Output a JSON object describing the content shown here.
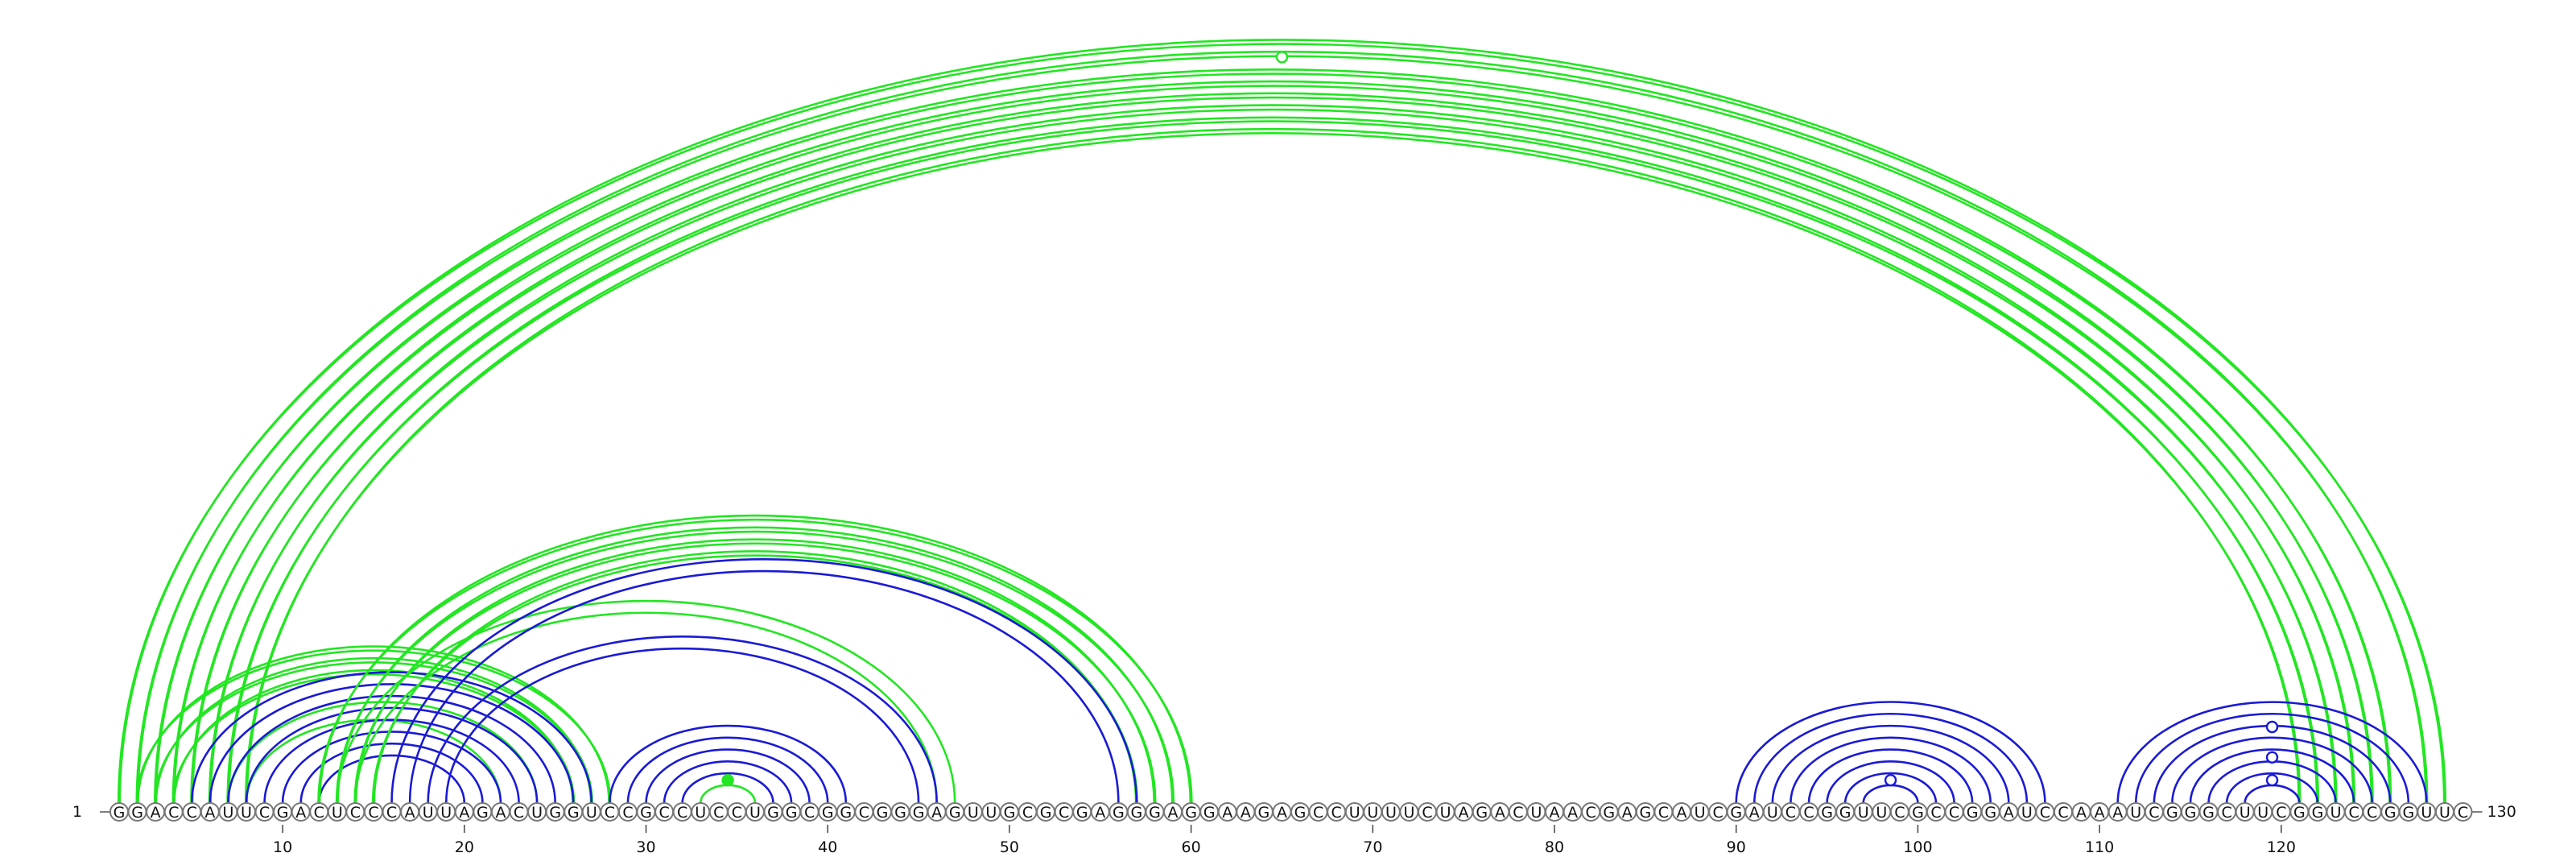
{
  "sequence": "GGACCAUUCGACUCCCAUUAGACUGGUCCGCCUCCUGGCGGCGGGAGUUGCGCGAGGGAGGAAGAGCCUUUUCUAGACUAACGAGCAUCGAUCCGGUUCGCCGGAUCCAAAUCGGGCUUCGGUCCGGUUC",
  "start_label": "1",
  "end_label": "130",
  "ticks": [
    "10",
    "20",
    "30",
    "40",
    "50",
    "60",
    "70",
    "80",
    "90",
    "100",
    "110",
    "120"
  ],
  "colors": {
    "blue": "#1a1ad6",
    "green": "#22e622"
  },
  "arc_groups": [
    {
      "color": "green",
      "double": true,
      "pairs": [
        [
          1,
          129
        ],
        [
          2,
          128
        ],
        [
          3,
          126
        ],
        [
          4,
          125
        ],
        [
          5,
          124
        ],
        [
          6,
          123
        ],
        [
          7,
          122
        ],
        [
          8,
          121
        ]
      ]
    },
    {
      "color": "green",
      "double": true,
      "pairs": [
        [
          2,
          28
        ],
        [
          3,
          27
        ],
        [
          4,
          26
        ]
      ]
    },
    {
      "color": "green",
      "double": false,
      "pairs": [
        [
          7,
          24
        ],
        [
          8,
          22
        ]
      ]
    },
    {
      "color": "blue",
      "double": false,
      "pairs": [
        [
          5,
          27
        ],
        [
          6,
          26
        ],
        [
          7,
          25
        ],
        [
          8,
          24
        ],
        [
          9,
          23
        ],
        [
          10,
          22
        ],
        [
          11,
          21
        ],
        [
          12,
          20
        ]
      ]
    },
    {
      "color": "green",
      "double": true,
      "pairs": [
        [
          12,
          60
        ],
        [
          13,
          59
        ],
        [
          14,
          58
        ],
        [
          15,
          57
        ]
      ]
    },
    {
      "color": "green",
      "double": false,
      "pairs": [
        [
          13,
          47
        ],
        [
          14,
          46
        ]
      ]
    },
    {
      "color": "blue",
      "double": false,
      "pairs": [
        [
          16,
          57
        ],
        [
          17,
          56
        ],
        [
          18,
          46
        ],
        [
          19,
          45
        ]
      ]
    },
    {
      "color": "blue",
      "double": false,
      "pairs": [
        [
          28,
          41
        ],
        [
          29,
          40
        ],
        [
          30,
          39
        ],
        [
          31,
          38
        ],
        [
          32,
          37
        ]
      ]
    },
    {
      "color": "green",
      "double": false,
      "pairs": [
        [
          33,
          36
        ]
      ]
    },
    {
      "color": "blue",
      "double": false,
      "pairs": [
        [
          90,
          107
        ],
        [
          91,
          106
        ],
        [
          92,
          105
        ],
        [
          93,
          104
        ],
        [
          94,
          103
        ],
        [
          95,
          102
        ],
        [
          96,
          101
        ],
        [
          97,
          100
        ]
      ]
    },
    {
      "color": "blue",
      "double": false,
      "pairs": [
        [
          111,
          128
        ],
        [
          112,
          127
        ],
        [
          113,
          126
        ],
        [
          114,
          125
        ],
        [
          115,
          124
        ],
        [
          116,
          123
        ],
        [
          117,
          122
        ],
        [
          118,
          121
        ]
      ]
    }
  ],
  "markers": [
    {
      "pos": 65.0,
      "height": 0.98,
      "color": "green",
      "filled": false
    },
    {
      "pos": 34.5,
      "height": 0.03,
      "color": "green",
      "filled": true
    },
    {
      "pos": 98.5,
      "height": 0.03,
      "color": "blue",
      "filled": false
    },
    {
      "pos": 119.5,
      "height": 0.1,
      "color": "blue",
      "filled": false
    },
    {
      "pos": 119.5,
      "height": 0.06,
      "color": "blue",
      "filled": false
    },
    {
      "pos": 119.5,
      "height": 0.03,
      "color": "blue",
      "filled": false
    }
  ]
}
